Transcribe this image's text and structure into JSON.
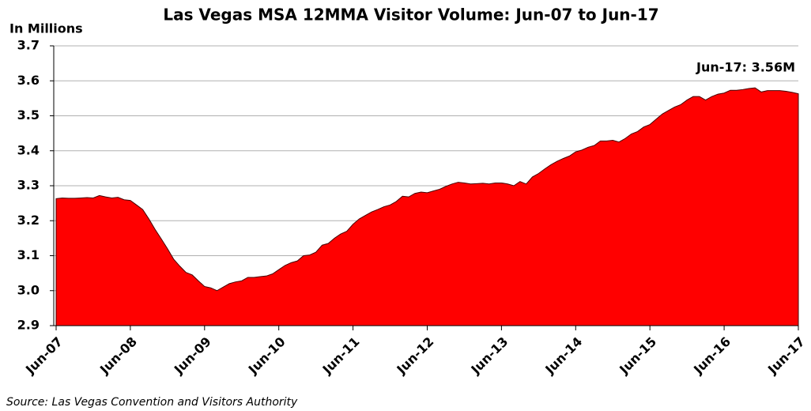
{
  "chart_data": {
    "type": "area",
    "title": "Las Vegas MSA 12MMA Visitor Volume: Jun-07 to Jun-17",
    "y_label": "In Millions",
    "annotation": "Jun-17: 3.56M",
    "source": "Source: Las Vegas Convention and Visitors Authority",
    "color": "#ff0000",
    "grid": true,
    "ylim": [
      2.9,
      3.7
    ],
    "yticks": [
      {
        "value": 2.9,
        "label": "2.9"
      },
      {
        "value": 3.0,
        "label": "3.0"
      },
      {
        "value": 3.1,
        "label": "3.1"
      },
      {
        "value": 3.2,
        "label": "3.2"
      },
      {
        "value": 3.3,
        "label": "3.3"
      },
      {
        "value": 3.4,
        "label": "3.4"
      },
      {
        "value": 3.5,
        "label": "3.5"
      },
      {
        "value": 3.6,
        "label": "3.6"
      },
      {
        "value": 3.7,
        "label": "3.7"
      }
    ],
    "categories": [
      "Jun-07",
      null,
      null,
      null,
      null,
      null,
      null,
      null,
      null,
      null,
      null,
      null,
      "Jun-08",
      null,
      null,
      null,
      null,
      null,
      null,
      null,
      null,
      null,
      null,
      null,
      "Jun-09",
      null,
      null,
      null,
      null,
      null,
      null,
      null,
      null,
      null,
      null,
      null,
      "Jun-10",
      null,
      null,
      null,
      null,
      null,
      null,
      null,
      null,
      null,
      null,
      null,
      "Jun-11",
      null,
      null,
      null,
      null,
      null,
      null,
      null,
      null,
      null,
      null,
      null,
      "Jun-12",
      null,
      null,
      null,
      null,
      null,
      null,
      null,
      null,
      null,
      null,
      null,
      "Jun-13",
      null,
      null,
      null,
      null,
      null,
      null,
      null,
      null,
      null,
      null,
      null,
      "Jun-14",
      null,
      null,
      null,
      null,
      null,
      null,
      null,
      null,
      null,
      null,
      null,
      "Jun-15",
      null,
      null,
      null,
      null,
      null,
      null,
      null,
      null,
      null,
      null,
      null,
      "Jun-16",
      null,
      null,
      null,
      null,
      null,
      null,
      null,
      null,
      null,
      null,
      null,
      "Jun-17"
    ],
    "values": [
      3.263,
      3.265,
      3.264,
      3.264,
      3.265,
      3.266,
      3.265,
      3.272,
      3.268,
      3.265,
      3.267,
      3.26,
      3.258,
      3.245,
      3.232,
      3.205,
      3.175,
      3.148,
      3.12,
      3.09,
      3.07,
      3.052,
      3.045,
      3.028,
      3.012,
      3.008,
      3.0,
      3.01,
      3.02,
      3.025,
      3.028,
      3.038,
      3.038,
      3.04,
      3.042,
      3.048,
      3.06,
      3.072,
      3.08,
      3.085,
      3.1,
      3.102,
      3.11,
      3.13,
      3.135,
      3.15,
      3.162,
      3.17,
      3.19,
      3.205,
      3.215,
      3.225,
      3.232,
      3.24,
      3.245,
      3.255,
      3.27,
      3.268,
      3.278,
      3.282,
      3.28,
      3.285,
      3.29,
      3.298,
      3.305,
      3.31,
      3.308,
      3.305,
      3.306,
      3.307,
      3.305,
      3.308,
      3.308,
      3.305,
      3.3,
      3.312,
      3.305,
      3.325,
      3.335,
      3.348,
      3.36,
      3.37,
      3.378,
      3.385,
      3.397,
      3.402,
      3.41,
      3.415,
      3.428,
      3.428,
      3.43,
      3.425,
      3.435,
      3.448,
      3.455,
      3.468,
      3.475,
      3.49,
      3.505,
      3.515,
      3.525,
      3.532,
      3.545,
      3.555,
      3.555,
      3.545,
      3.555,
      3.562,
      3.565,
      3.573,
      3.573,
      3.575,
      3.578,
      3.58,
      3.568,
      3.572,
      3.572,
      3.572,
      3.57,
      3.567,
      3.563
    ]
  }
}
